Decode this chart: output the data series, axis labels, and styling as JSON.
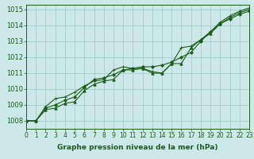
{
  "title": "Graphe pression niveau de la mer (hPa)",
  "background_color": "#cce8e8",
  "grid_color": "#aacccc",
  "line_color": "#1a5c1a",
  "xlim": [
    0,
    23
  ],
  "ylim": [
    1007.5,
    1015.3
  ],
  "yticks": [
    1008,
    1009,
    1010,
    1011,
    1012,
    1013,
    1014,
    1015
  ],
  "xticks": [
    0,
    1,
    2,
    3,
    4,
    5,
    6,
    7,
    8,
    9,
    10,
    11,
    12,
    13,
    14,
    15,
    16,
    17,
    18,
    19,
    20,
    21,
    22,
    23
  ],
  "series": [
    [
      1008.0,
      1008.0,
      1008.7,
      1008.8,
      1009.1,
      1009.2,
      1009.9,
      1010.3,
      1010.5,
      1010.6,
      1011.2,
      1011.2,
      1011.3,
      1011.0,
      1011.0,
      1011.6,
      1011.6,
      1012.6,
      1013.1,
      1013.5,
      1014.1,
      1014.5,
      1014.8,
      1015.0
    ],
    [
      1008.0,
      1008.0,
      1008.8,
      1009.0,
      1009.3,
      1009.5,
      1010.1,
      1010.6,
      1010.7,
      1010.9,
      1011.2,
      1011.3,
      1011.4,
      1011.4,
      1011.5,
      1011.7,
      1012.0,
      1012.3,
      1013.0,
      1013.6,
      1014.1,
      1014.4,
      1014.7,
      1014.9
    ],
    [
      1008.0,
      1008.0,
      1008.9,
      1009.4,
      1009.5,
      1009.8,
      1010.2,
      1010.5,
      1010.6,
      1011.2,
      1011.4,
      1011.3,
      1011.3,
      1011.1,
      1011.0,
      1011.6,
      1012.6,
      1012.7,
      1013.1,
      1013.6,
      1014.2,
      1014.6,
      1014.9,
      1015.1
    ]
  ],
  "ytick_fontsize": 6,
  "xtick_fontsize": 5.5,
  "xlabel_fontsize": 6.5
}
